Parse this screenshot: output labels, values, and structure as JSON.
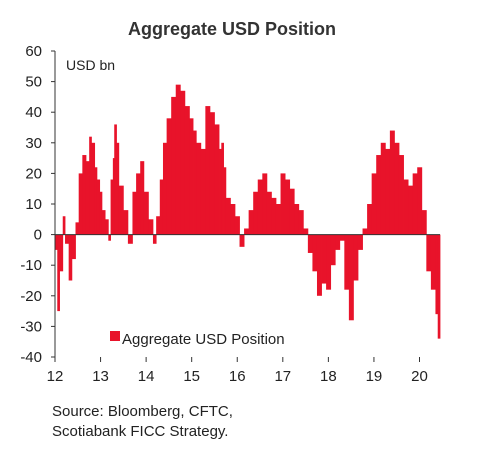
{
  "chart_data": {
    "type": "bar",
    "title": "Aggregate USD Position",
    "unit_label": "USD bn",
    "ylim": [
      -40,
      60
    ],
    "yticks": [
      "60",
      "50",
      "40",
      "30",
      "20",
      "10",
      "0",
      "-10",
      "-20",
      "-30",
      "-40"
    ],
    "xlim": [
      12,
      20.45
    ],
    "xticks": [
      "12",
      "13",
      "14",
      "15",
      "16",
      "17",
      "18",
      "19",
      "20"
    ],
    "legend": {
      "label": "Aggregate USD Position",
      "position": "bottom-left"
    },
    "series_color": "#E8132A",
    "grid": false,
    "series": [
      {
        "name": "Aggregate USD Position",
        "x": [
          12.0,
          12.05,
          12.1,
          12.17,
          12.22,
          12.3,
          12.37,
          12.45,
          12.52,
          12.6,
          12.68,
          12.75,
          12.8,
          12.87,
          12.92,
          12.98,
          13.03,
          13.1,
          13.17,
          13.22,
          13.27,
          13.3,
          13.35,
          13.4,
          13.5,
          13.6,
          13.7,
          13.78,
          13.87,
          13.95,
          14.05,
          14.15,
          14.22,
          14.3,
          14.37,
          14.45,
          14.55,
          14.65,
          14.75,
          14.85,
          14.95,
          15.03,
          15.1,
          15.2,
          15.3,
          15.4,
          15.5,
          15.6,
          15.65,
          15.7,
          15.75,
          15.85,
          15.95,
          16.05,
          16.15,
          16.25,
          16.35,
          16.45,
          16.55,
          16.65,
          16.75,
          16.85,
          16.95,
          17.05,
          17.15,
          17.25,
          17.35,
          17.45,
          17.55,
          17.65,
          17.75,
          17.85,
          17.95,
          18.05,
          18.15,
          18.25,
          18.35,
          18.45,
          18.55,
          18.65,
          18.75,
          18.85,
          18.95,
          19.05,
          19.15,
          19.25,
          19.35,
          19.45,
          19.55,
          19.65,
          19.75,
          19.85,
          19.95,
          20.05,
          20.15,
          20.25,
          20.35,
          20.4
        ],
        "values": [
          -5,
          -25,
          -12,
          6,
          -3,
          -15,
          -8,
          4,
          20,
          26,
          24,
          32,
          30,
          22,
          18,
          14,
          8,
          5,
          -2,
          18,
          25,
          36,
          30,
          16,
          8,
          -3,
          14,
          20,
          24,
          14,
          5,
          -3,
          6,
          18,
          30,
          38,
          45,
          49,
          47,
          42,
          38,
          34,
          30,
          28,
          42,
          40,
          36,
          28,
          30,
          22,
          12,
          10,
          6,
          -4,
          2,
          8,
          14,
          18,
          20,
          14,
          12,
          10,
          20,
          18,
          15,
          10,
          8,
          2,
          -6,
          -12,
          -20,
          -16,
          -18,
          -10,
          -5,
          -2,
          -18,
          -28,
          -15,
          -5,
          2,
          10,
          20,
          26,
          30,
          28,
          34,
          30,
          26,
          18,
          16,
          20,
          22,
          8,
          -12,
          -18,
          -26,
          -34
        ],
        "values_note": "approx"
      }
    ],
    "source": [
      "Source: Bloomberg, CFTC,",
      "Scotiabank FICC  Strategy."
    ]
  }
}
